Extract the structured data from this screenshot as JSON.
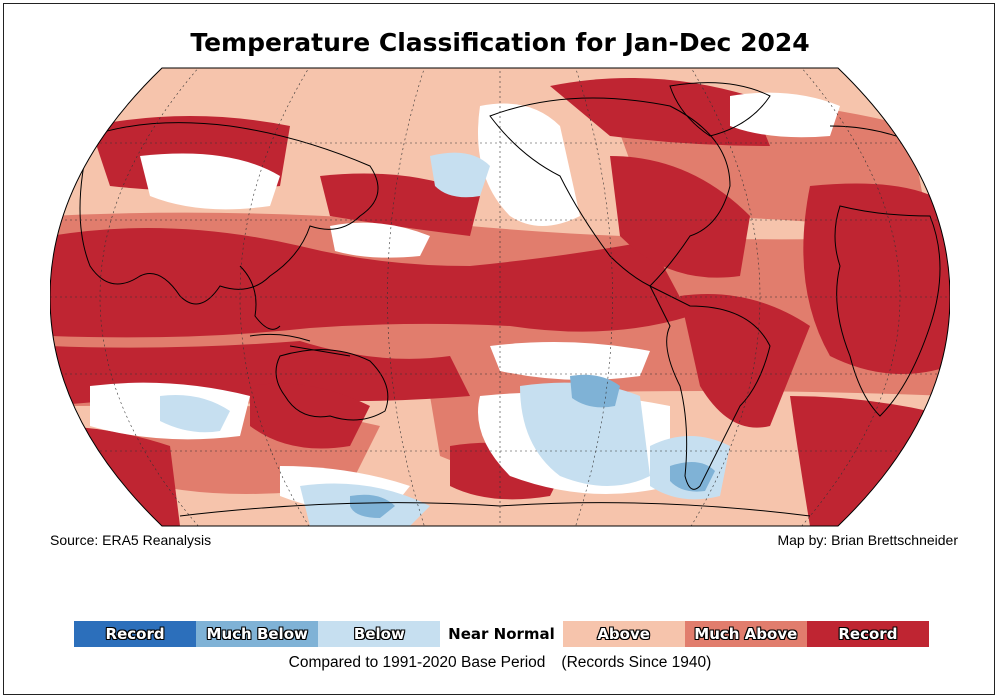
{
  "title": "Temperature Classification for Jan-Dec 2024",
  "source": "Source: ERA5 Reanalysis",
  "credit": "Map by: Brian Brettschneider",
  "legend": [
    {
      "label": "Record",
      "color": "#2c6fbb"
    },
    {
      "label": "Much Below",
      "color": "#7fb2d6"
    },
    {
      "label": "Below",
      "color": "#c6dff0"
    },
    {
      "label": "Near Normal",
      "color": "#ffffff"
    },
    {
      "label": "Above",
      "color": "#f6c4ac"
    },
    {
      "label": "Much Above",
      "color": "#e17d6d"
    },
    {
      "label": "Record",
      "color": "#bf2532"
    }
  ],
  "base_period": "Compared to 1991-2020 Base Period",
  "records_note": "(Records Since 1940)"
}
